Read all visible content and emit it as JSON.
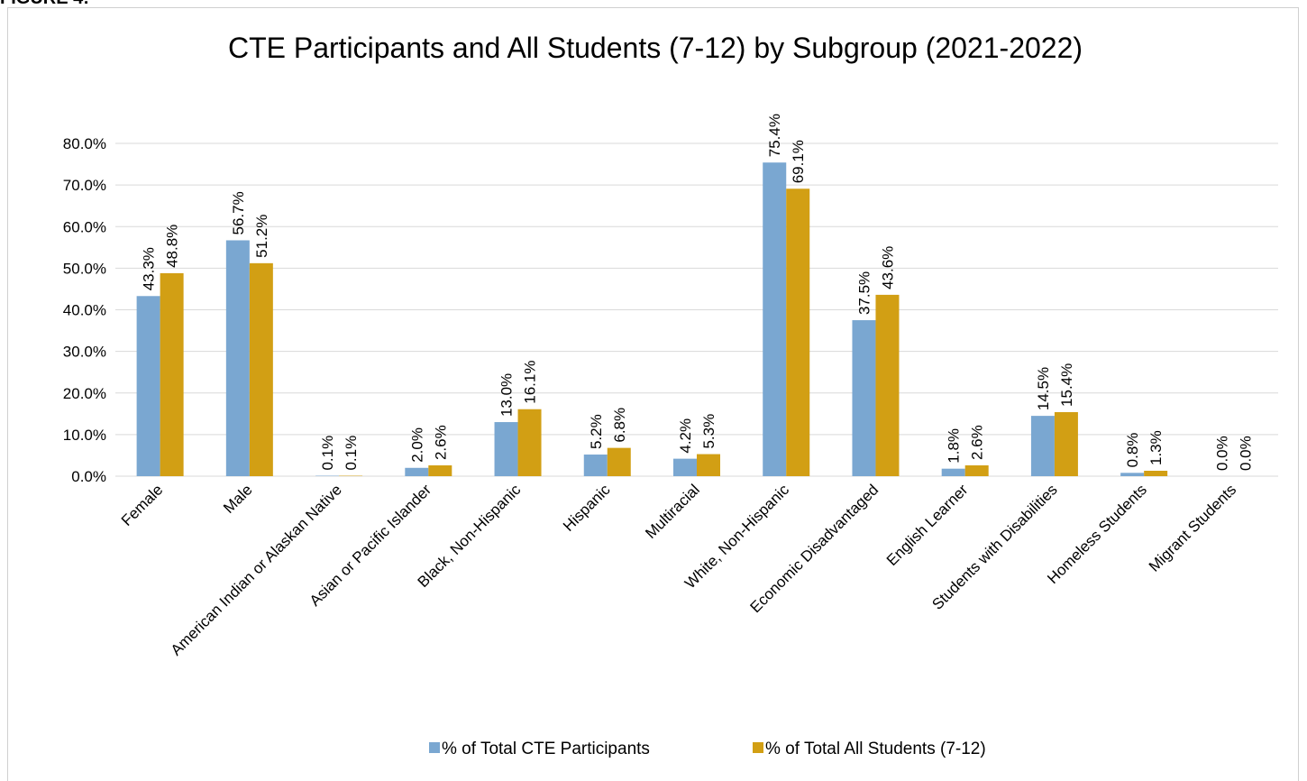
{
  "figure_label": "FIGURE 4:",
  "chart_data": {
    "type": "bar",
    "title": "CTE Participants and All Students (7-12) by Subgroup  (2021-2022)",
    "categories": [
      "Female",
      "Male",
      "American Indian or Alaskan Native",
      "Asian or Pacific Islander",
      "Black, Non-Hispanic",
      "Hispanic",
      "Multiracial",
      "White, Non-Hispanic",
      "Economic Disadvantaged",
      "English Learner",
      "Students with Disabilities",
      "Homeless Students",
      "Migrant Students"
    ],
    "series": [
      {
        "name": "% of Total CTE Participants",
        "color": "#7aa7d1",
        "values": [
          43.3,
          56.7,
          0.1,
          2.0,
          13.0,
          5.2,
          4.2,
          75.4,
          37.5,
          1.8,
          14.5,
          0.8,
          0.0
        ],
        "value_labels": [
          "43.3%",
          "56.7%",
          "0.1%",
          "2.0%",
          "13.0%",
          "5.2%",
          "4.2%",
          "75.4%",
          "37.5%",
          "1.8%",
          "14.5%",
          "0.8%",
          "0.0%"
        ]
      },
      {
        "name": "% of Total All Students (7-12)",
        "color": "#d29f14",
        "values": [
          48.8,
          51.2,
          0.1,
          2.6,
          16.1,
          6.8,
          5.3,
          69.1,
          43.6,
          2.6,
          15.4,
          1.3,
          0.0
        ],
        "value_labels": [
          "48.8%",
          "51.2%",
          "0.1%",
          "2.6%",
          "16.1%",
          "6.8%",
          "5.3%",
          "69.1%",
          "43.6%",
          "2.6%",
          "15.4%",
          "1.3%",
          "0.0%"
        ]
      }
    ],
    "ylim": [
      0,
      80
    ],
    "yticks": [
      {
        "value": 0,
        "label": "0.0%"
      },
      {
        "value": 10,
        "label": "10.0%"
      },
      {
        "value": 20,
        "label": "20.0%"
      },
      {
        "value": 30,
        "label": "30.0%"
      },
      {
        "value": 40,
        "label": "40.0%"
      },
      {
        "value": 50,
        "label": "50.0%"
      },
      {
        "value": 60,
        "label": "60.0%"
      },
      {
        "value": 70,
        "label": "70.0%"
      },
      {
        "value": 80,
        "label": "80.0%"
      }
    ],
    "grid": true,
    "legend": "bottom"
  }
}
